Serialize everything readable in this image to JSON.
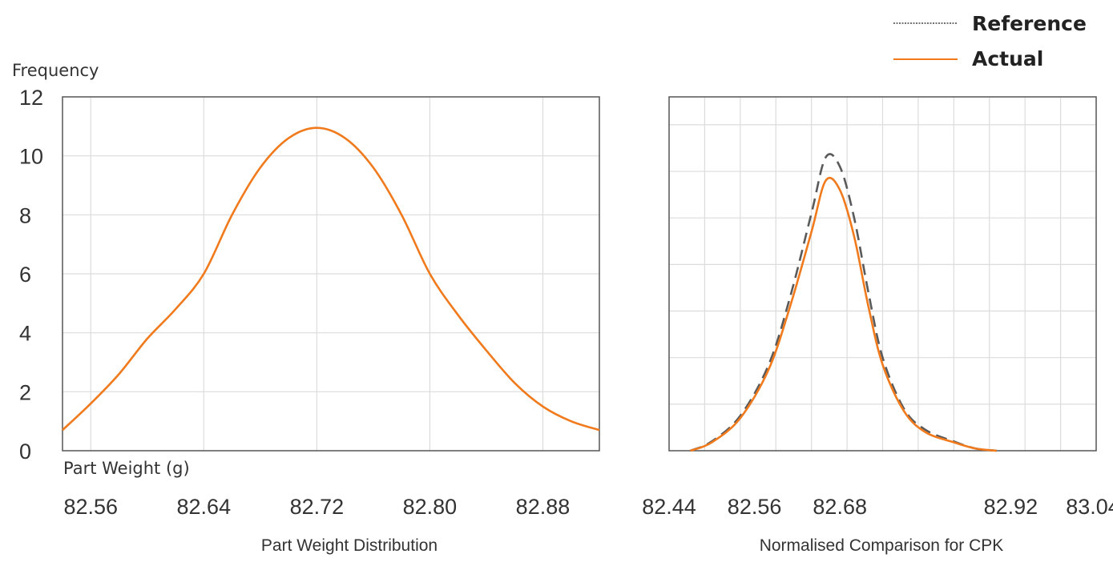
{
  "legend": {
    "reference_label": "Reference",
    "actual_label": "Actual"
  },
  "colors": {
    "actual": "#f07a1c",
    "reference": "#5a5a5a",
    "grid": "#dcdcdc",
    "frame": "#555555"
  },
  "chart_data": [
    {
      "type": "line",
      "title": "Part Weight Distribution",
      "xlabel": "Part Weight (g)",
      "ylabel": "Frequency",
      "xlim": [
        82.54,
        82.92
      ],
      "ylim": [
        0,
        12
      ],
      "x_ticks": [
        "82.56",
        "82.64",
        "82.72",
        "82.80",
        "82.88"
      ],
      "y_ticks": [
        "0",
        "2",
        "4",
        "6",
        "8",
        "10",
        "12"
      ],
      "grid": true,
      "series": [
        {
          "name": "Actual",
          "x": [
            82.54,
            82.56,
            82.58,
            82.6,
            82.62,
            82.64,
            82.66,
            82.68,
            82.7,
            82.72,
            82.74,
            82.76,
            82.78,
            82.8,
            82.82,
            82.84,
            82.86,
            82.88,
            82.9,
            82.92
          ],
          "y": [
            0.7,
            1.6,
            2.6,
            3.8,
            4.8,
            6.0,
            8.0,
            9.6,
            10.6,
            10.95,
            10.6,
            9.6,
            8.0,
            6.0,
            4.6,
            3.4,
            2.3,
            1.5,
            1.0,
            0.7
          ]
        }
      ]
    },
    {
      "type": "line",
      "title": "Normalised Comparison for CPK",
      "xlabel": "",
      "ylabel": "",
      "xlim": [
        82.44,
        83.04
      ],
      "ylim": [
        0,
        7.6
      ],
      "x_ticks": [
        "82.44",
        "82.56",
        "82.68",
        "82.92",
        "83.04"
      ],
      "y_ticks": [],
      "grid": true,
      "series": [
        {
          "name": "Reference",
          "style": "dashed",
          "x": [
            82.47,
            82.5,
            82.54,
            82.58,
            82.61,
            82.64,
            82.66,
            82.68,
            82.7,
            82.72,
            82.74,
            82.77,
            82.8,
            82.84,
            82.87,
            82.9
          ],
          "y": [
            0.0,
            0.2,
            0.75,
            1.85,
            3.3,
            5.1,
            6.3,
            6.1,
            5.0,
            3.4,
            2.0,
            0.9,
            0.45,
            0.2,
            0.05,
            0.0
          ]
        },
        {
          "name": "Actual",
          "style": "solid",
          "x": [
            82.47,
            82.5,
            82.54,
            82.58,
            82.61,
            82.64,
            82.66,
            82.68,
            82.7,
            82.72,
            82.74,
            82.77,
            82.8,
            82.84,
            82.87,
            82.9
          ],
          "y": [
            0.0,
            0.18,
            0.7,
            1.75,
            3.1,
            4.7,
            5.8,
            5.6,
            4.6,
            3.1,
            1.85,
            0.85,
            0.4,
            0.18,
            0.05,
            0.0
          ]
        }
      ]
    }
  ]
}
